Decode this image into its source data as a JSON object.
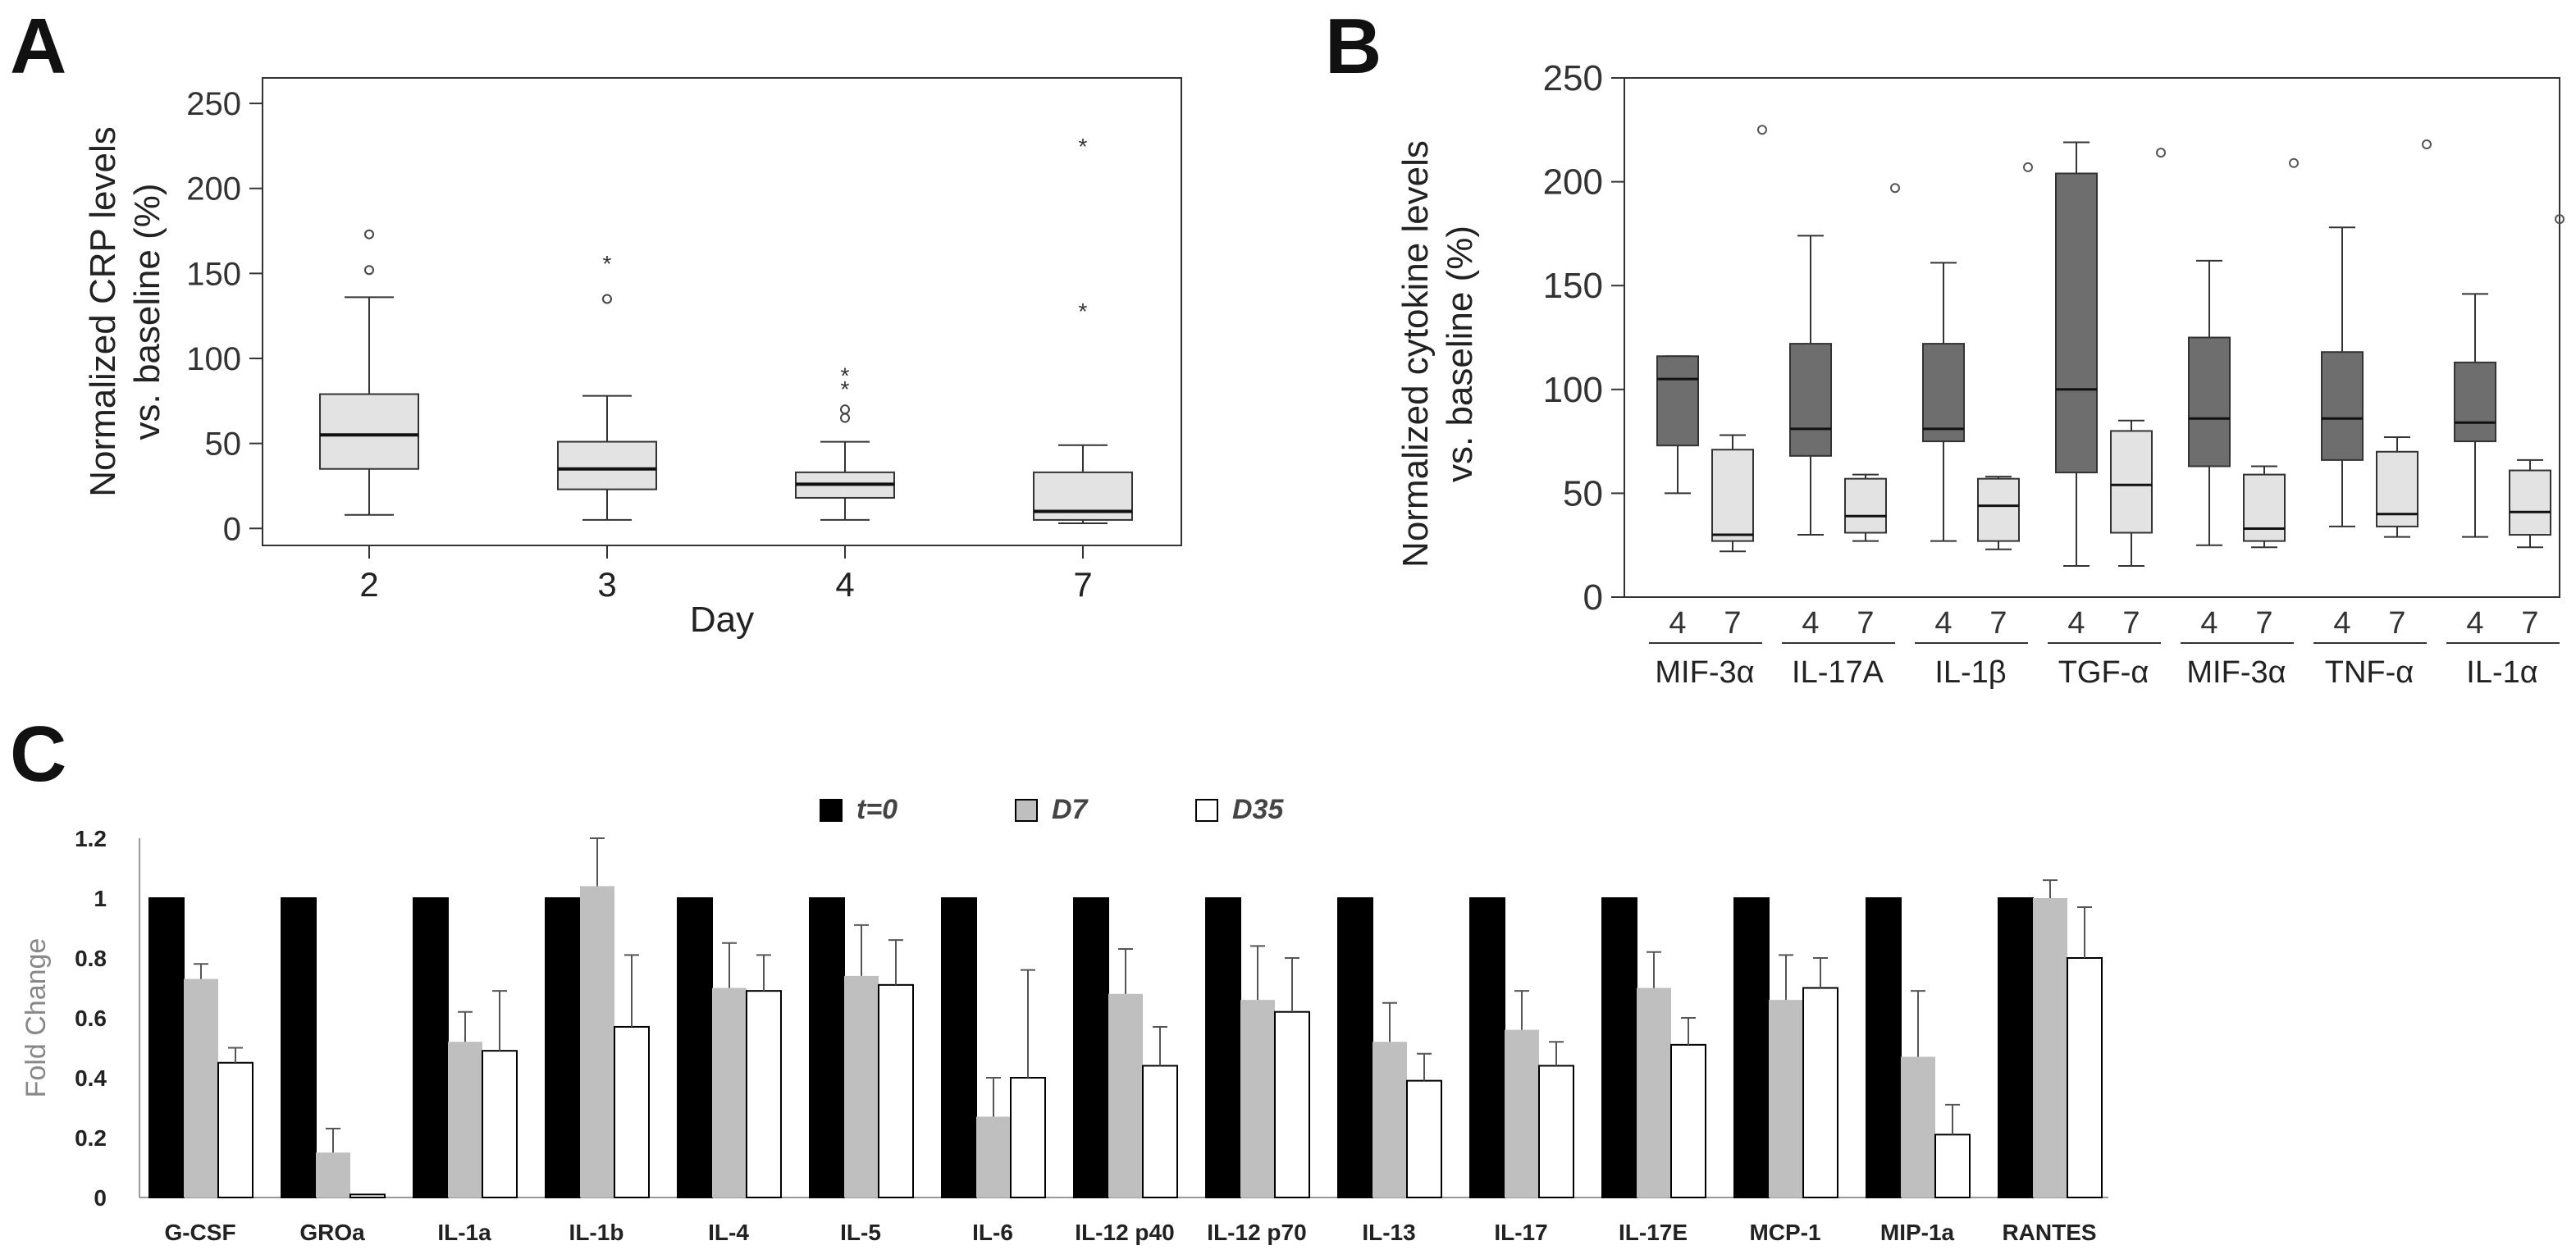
{
  "panel_labels": {
    "a": "A",
    "b": "B",
    "c": "C"
  },
  "chart_data": [
    {
      "id": "A",
      "type": "box",
      "title": "",
      "xlabel": "Day",
      "ylabel_line1": "Normalized CRP levels",
      "ylabel_line2": "vs. baseline (%)",
      "ylim": [
        -10,
        265
      ],
      "yticks": [
        0,
        50,
        100,
        150,
        200,
        250
      ],
      "categories": [
        "2",
        "3",
        "4",
        "7"
      ],
      "boxes": [
        {
          "min": 8,
          "q1": 35,
          "median": 55,
          "q3": 79,
          "max": 136,
          "outliers": [
            152,
            173
          ],
          "extremes": []
        },
        {
          "min": 5,
          "q1": 23,
          "median": 35,
          "q3": 51,
          "max": 78,
          "outliers": [
            135
          ],
          "extremes": [
            158
          ]
        },
        {
          "min": 5,
          "q1": 18,
          "median": 26,
          "q3": 33,
          "max": 51,
          "outliers": [
            65,
            70
          ],
          "extremes": [
            84,
            92
          ]
        },
        {
          "min": 3,
          "q1": 5,
          "median": 10,
          "q3": 33,
          "max": 49,
          "outliers": [],
          "extremes": [
            130,
            227
          ]
        }
      ]
    },
    {
      "id": "B",
      "type": "box",
      "title": "",
      "ylabel_line1": "Normalized cytokine levels",
      "ylabel_line2": "vs. baseline (%)",
      "ylim": [
        0,
        250
      ],
      "yticks": [
        0,
        50,
        100,
        150,
        200,
        250
      ],
      "sub_categories": [
        "4",
        "7"
      ],
      "groups": [
        {
          "label": "MIF-3α",
          "day4": {
            "min": 50,
            "q1": 73,
            "median": 105,
            "q3": 116,
            "max": 116
          },
          "day7": {
            "min": 22,
            "q1": 27,
            "median": 30,
            "q3": 71,
            "max": 78
          },
          "outlier": 225
        },
        {
          "label": "IL-17A",
          "day4": {
            "min": 30,
            "q1": 68,
            "median": 81,
            "q3": 122,
            "max": 174
          },
          "day7": {
            "min": 27,
            "q1": 31,
            "median": 39,
            "q3": 57,
            "max": 59
          },
          "outlier": 197
        },
        {
          "label": "IL-1β",
          "day4": {
            "min": 27,
            "q1": 75,
            "median": 81,
            "q3": 122,
            "max": 161
          },
          "day7": {
            "min": 23,
            "q1": 27,
            "median": 44,
            "q3": 57,
            "max": 58
          },
          "outlier": 207
        },
        {
          "label": "TGF-α",
          "day4": {
            "min": 15,
            "q1": 60,
            "median": 100,
            "q3": 204,
            "max": 219
          },
          "day7": {
            "min": 15,
            "q1": 31,
            "median": 54,
            "q3": 80,
            "max": 85
          },
          "outlier": 214
        },
        {
          "label": "MIF-3α",
          "day4": {
            "min": 25,
            "q1": 63,
            "median": 86,
            "q3": 125,
            "max": 162
          },
          "day7": {
            "min": 24,
            "q1": 27,
            "median": 33,
            "q3": 59,
            "max": 63
          },
          "outlier": 209
        },
        {
          "label": "TNF-α",
          "day4": {
            "min": 34,
            "q1": 66,
            "median": 86,
            "q3": 118,
            "max": 178
          },
          "day7": {
            "min": 29,
            "q1": 34,
            "median": 40,
            "q3": 70,
            "max": 77
          },
          "outlier": 218
        },
        {
          "label": "IL-1α",
          "day4": {
            "min": 29,
            "q1": 75,
            "median": 84,
            "q3": 113,
            "max": 146
          },
          "day7": {
            "min": 24,
            "q1": 30,
            "median": 41,
            "q3": 61,
            "max": 66
          },
          "outlier": 182
        }
      ]
    },
    {
      "id": "C",
      "type": "bar",
      "title": "",
      "ylabel": "Fold Change",
      "ylim": [
        0,
        1.2
      ],
      "yticks": [
        "0",
        "0.2",
        "0.4",
        "0.6",
        "0.8",
        "1",
        "1.2"
      ],
      "categories": [
        "G-CSF",
        "GROa",
        "IL-1a",
        "IL-1b",
        "IL-4",
        "IL-5",
        "IL-6",
        "IL-12 p40",
        "IL-12 p70",
        "IL-13",
        "IL-17",
        "IL-17E",
        "MCP-1",
        "MIP-1a",
        "RANTES"
      ],
      "series": [
        {
          "name": "t=0",
          "color": "#000000",
          "values": [
            1,
            1,
            1,
            1,
            1,
            1,
            1,
            1,
            1,
            1,
            1,
            1,
            1,
            1,
            1
          ],
          "errors": [
            0,
            0,
            0,
            0,
            0,
            0,
            0,
            0,
            0,
            0,
            0,
            0,
            0,
            0,
            0
          ]
        },
        {
          "name": "D7",
          "color": "#bfbfbf",
          "values": [
            0.73,
            0.15,
            0.52,
            1.04,
            0.7,
            0.74,
            0.27,
            0.68,
            0.66,
            0.52,
            0.56,
            0.7,
            0.66,
            0.47,
            1.0
          ],
          "errors": [
            0.05,
            0.08,
            0.1,
            0.16,
            0.15,
            0.17,
            0.13,
            0.15,
            0.18,
            0.13,
            0.13,
            0.12,
            0.15,
            0.22,
            0.06
          ]
        },
        {
          "name": "D35",
          "color": "#ffffff",
          "values": [
            0.45,
            0.01,
            0.49,
            0.57,
            0.69,
            0.71,
            0.4,
            0.44,
            0.62,
            0.39,
            0.44,
            0.51,
            0.7,
            0.21,
            0.8
          ],
          "errors": [
            0.05,
            0.0,
            0.2,
            0.24,
            0.12,
            0.15,
            0.36,
            0.13,
            0.18,
            0.09,
            0.08,
            0.09,
            0.1,
            0.1,
            0.17
          ]
        }
      ]
    }
  ]
}
